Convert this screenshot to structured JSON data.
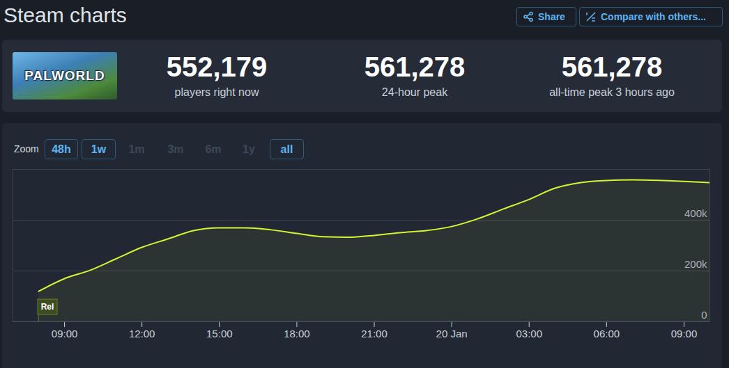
{
  "page": {
    "title": "Steam charts",
    "buttons": [
      "Share",
      "Compare with others..."
    ],
    "game": "PALWORLD",
    "stats": [
      {
        "value": "552,179",
        "label": "players right now"
      },
      {
        "value": "561,278",
        "label": "24-hour peak"
      },
      {
        "value": "561,278",
        "label": "all-time peak 3 hours ago"
      }
    ],
    "zoom": {
      "label": "Zoom",
      "options": [
        {
          "label": "48h",
          "active": true
        },
        {
          "label": "1w",
          "active": true
        },
        {
          "label": "1m",
          "active": false
        },
        {
          "label": "3m",
          "active": false
        },
        {
          "label": "6m",
          "active": false
        },
        {
          "label": "1y",
          "active": false
        },
        {
          "label": "all",
          "active": true
        }
      ]
    }
  },
  "chart_data": {
    "type": "line",
    "x": [
      8,
      9,
      10,
      11,
      12,
      13,
      14,
      15,
      16,
      17,
      18,
      19,
      20,
      21,
      22,
      23,
      24,
      25,
      26,
      27,
      28,
      29,
      30,
      31,
      32,
      33,
      34
    ],
    "values": [
      120000,
      170000,
      203000,
      248000,
      293000,
      326000,
      359000,
      370000,
      370000,
      362000,
      348000,
      335000,
      333000,
      340000,
      351000,
      359000,
      375000,
      405000,
      444000,
      482000,
      526000,
      548000,
      556000,
      559000,
      557000,
      553000,
      548000
    ],
    "color": "#d4f334",
    "xlim": [
      7,
      34
    ],
    "xticks": [
      {
        "value": 9,
        "label": "09:00"
      },
      {
        "value": 12,
        "label": "12:00"
      },
      {
        "value": 15,
        "label": "15:00"
      },
      {
        "value": 18,
        "label": "18:00"
      },
      {
        "value": 21,
        "label": "21:00"
      },
      {
        "value": 24,
        "label": "20 Jan"
      },
      {
        "value": 27,
        "label": "03:00"
      },
      {
        "value": 30,
        "label": "06:00"
      },
      {
        "value": 33,
        "label": "09:00"
      }
    ],
    "ylim": [
      0,
      600000
    ],
    "yticks": [
      0,
      {
        "value": 200000,
        "label": "200k"
      },
      {
        "value": 400000,
        "label": "400k"
      }
    ],
    "grid": true,
    "annotations": [
      {
        "x": 8,
        "label": "Rel"
      }
    ]
  }
}
